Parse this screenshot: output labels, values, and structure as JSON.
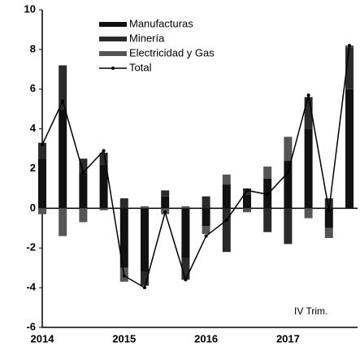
{
  "chart_data": {
    "type": "bar",
    "annotation": "IV Trim.",
    "categories": [
      "2014",
      null,
      null,
      null,
      "2015",
      null,
      null,
      null,
      "2016",
      null,
      null,
      null,
      "2017",
      null,
      null,
      null
    ],
    "series": [
      {
        "name": "Manufacturas",
        "color": "#111111",
        "values": [
          2.5,
          5.0,
          1.8,
          2.2,
          -3.0,
          -3.2,
          0.6,
          -2.5,
          -0.9,
          1.2,
          0.7,
          1.5,
          2.4,
          4.0,
          -1.0,
          6.0
        ]
      },
      {
        "name": "Minería",
        "color": "#2a2a2a",
        "values": [
          0.8,
          2.2,
          0.7,
          0.6,
          0.5,
          -0.7,
          0.3,
          -1.1,
          0.6,
          -2.2,
          0.3,
          -1.2,
          -1.8,
          1.6,
          0.5,
          2.1
        ]
      },
      {
        "name": "Electricidad y Gas",
        "color": "#555555",
        "values": [
          -0.3,
          -1.4,
          -0.7,
          -0.1,
          -0.7,
          0.1,
          -0.3,
          0.1,
          -0.4,
          0.5,
          -0.2,
          0.6,
          1.2,
          -0.5,
          -0.5,
          0.1
        ]
      },
      {
        "name": "Total",
        "type": "line",
        "color": "#000000",
        "values": [
          3.2,
          5.4,
          1.8,
          2.9,
          -3.4,
          -4.0,
          -0.2,
          -3.6,
          -1.4,
          -0.6,
          0.9,
          0.7,
          1.8,
          5.7,
          -0.1,
          8.2
        ]
      }
    ],
    "ylim": [
      -6,
      10
    ],
    "yticks": [
      -6,
      -4,
      -2,
      0,
      2,
      4,
      6,
      8,
      10
    ]
  }
}
